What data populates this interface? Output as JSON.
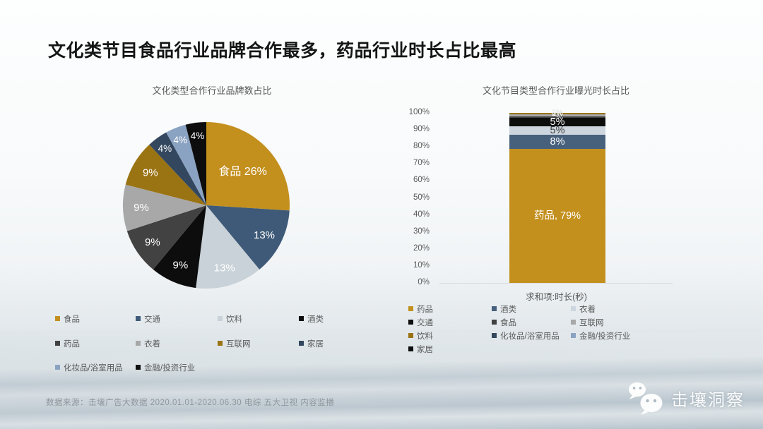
{
  "page": {
    "title": "文化类节目食品行业品牌合作最多，药品行业时长占比最高",
    "source_note": "数据来源：击壤广告大数据 2020.01.01-2020.06.30 电综 五大卫视 内容监播",
    "brand": "击壤洞察"
  },
  "chart_data": [
    {
      "type": "pie",
      "title": "文化类型合作行业品牌数占比",
      "categories": [
        "食品",
        "交通",
        "饮料",
        "酒类",
        "药品",
        "衣着",
        "互联网",
        "家居",
        "化妆品/浴室用品",
        "金融/投资行业"
      ],
      "values": [
        26,
        13,
        13,
        9,
        9,
        9,
        9,
        4,
        4,
        4
      ],
      "unit": "%",
      "slice_labels": [
        "食品 26%",
        "13%",
        "13%",
        "9%",
        "9%",
        "9%",
        "9%",
        "4%",
        "4%",
        "4%"
      ],
      "colors": [
        "#C3901E",
        "#3E5A78",
        "#C9D2D8",
        "#0D0D0D",
        "#424242",
        "#A8A8A8",
        "#9A7313",
        "#33475E",
        "#8BA3C2",
        "#0D0D0D"
      ],
      "legend_position": "bottom"
    },
    {
      "type": "bar",
      "subtype": "100%-stacked",
      "title": "文化节目类型合作行业曝光时长占比",
      "categories": [
        "求和项:时长(秒)"
      ],
      "series": [
        {
          "name": "药品",
          "values": [
            79
          ]
        },
        {
          "name": "酒类",
          "values": [
            8
          ]
        },
        {
          "name": "衣着",
          "values": [
            5
          ]
        },
        {
          "name": "交通",
          "values": [
            5
          ]
        },
        {
          "name": "食品",
          "values": [
            1
          ]
        },
        {
          "name": "互联网",
          "values": [
            1
          ]
        },
        {
          "name": "饮料",
          "values": [
            1
          ]
        },
        {
          "name": "化妆品/浴室用品",
          "values": [
            0
          ]
        },
        {
          "name": "金融/投资行业",
          "values": [
            0
          ]
        },
        {
          "name": "家居",
          "values": [
            0
          ]
        }
      ],
      "colors": [
        "#C3901E",
        "#47607C",
        "#CDD5DE",
        "#0D0D0D",
        "#424242",
        "#A8A8A8",
        "#9A7313",
        "#33475E",
        "#8BA3C2",
        "#0D0D0D"
      ],
      "segment_labels": [
        "药品, 79%",
        "8%",
        "5%",
        "5%",
        "1%",
        "1%",
        "1%",
        "0%",
        "0%",
        "0%"
      ],
      "label_dark": [
        false,
        false,
        true,
        false,
        false,
        true,
        false,
        false,
        true,
        false
      ],
      "xlabel": "求和项:时长(秒)",
      "ylim": [
        0,
        100
      ],
      "yticks": [
        "100%",
        "90%",
        "80%",
        "70%",
        "60%",
        "50%",
        "40%",
        "30%",
        "20%",
        "10%",
        "0%"
      ],
      "grid": false,
      "legend_position": "bottom"
    }
  ]
}
